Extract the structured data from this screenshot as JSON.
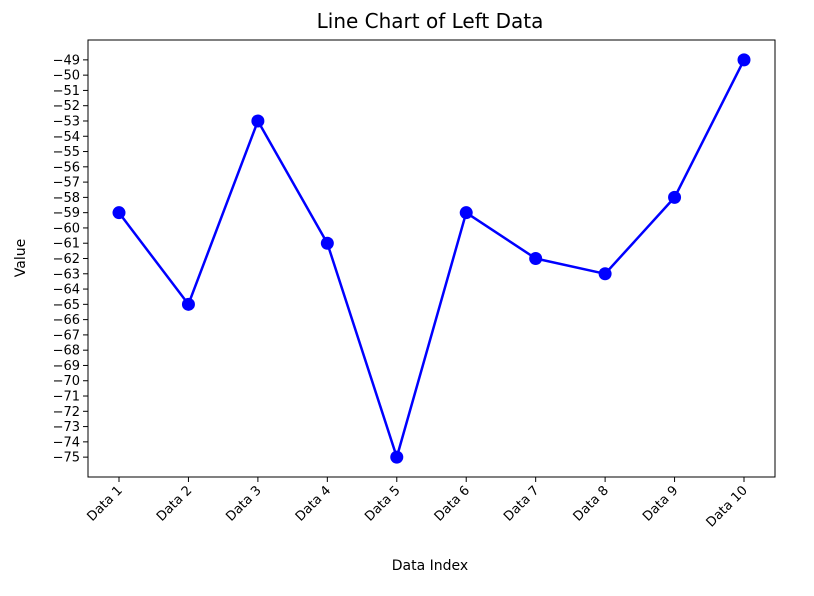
{
  "chart_data": {
    "type": "line",
    "title": "Line Chart of Left Data",
    "xlabel": "Data Index",
    "ylabel": "Value",
    "categories": [
      "Data 1",
      "Data 2",
      "Data 3",
      "Data 4",
      "Data 5",
      "Data 6",
      "Data 7",
      "Data 8",
      "Data 9",
      "Data 10"
    ],
    "values": [
      -59,
      -65,
      -53,
      -61,
      -75,
      -59,
      -62,
      -63,
      -58,
      -49
    ],
    "ylim": [
      -76.3,
      -47.7
    ],
    "yticks": [
      -75,
      -74,
      -73,
      -72,
      -71,
      -70,
      -69,
      -68,
      -67,
      -66,
      -65,
      -64,
      -63,
      -62,
      -61,
      -60,
      -59,
      -58,
      -57,
      -56,
      -55,
      -54,
      -53,
      -52,
      -51,
      -50,
      -49
    ],
    "color": "#0000ff",
    "marker": "circle",
    "grid": false,
    "xtick_rotation": 45
  }
}
